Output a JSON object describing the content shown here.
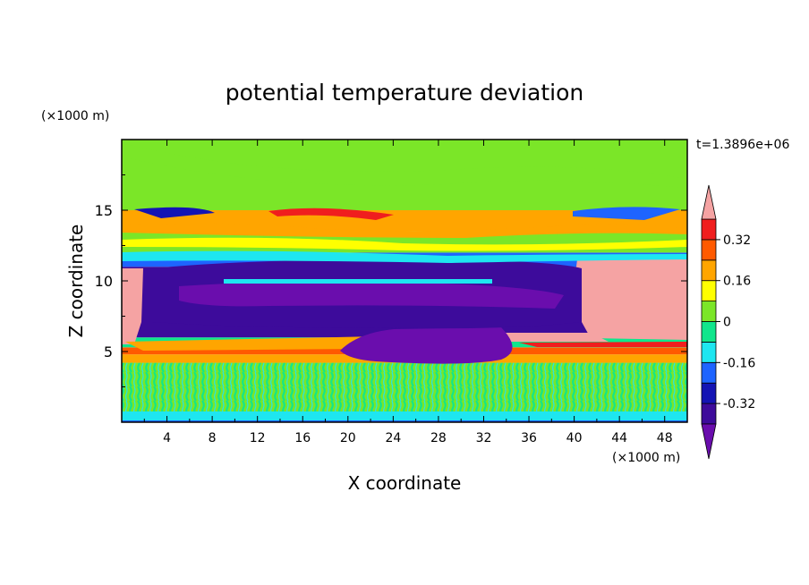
{
  "chart_data": {
    "type": "heatmap",
    "title": "potential temperature deviation",
    "xlabel": "X coordinate",
    "ylabel": "Z coordinate",
    "x_unit": "(×1000 m)",
    "y_unit": "(×1000 m)",
    "time_label": "t=1.3896e+06",
    "xlim": [
      0,
      50
    ],
    "ylim": [
      0,
      20
    ],
    "x_ticks": [
      4,
      8,
      12,
      16,
      20,
      24,
      28,
      32,
      36,
      40,
      44,
      48
    ],
    "y_ticks": [
      5,
      10,
      15
    ],
    "colorbar": {
      "levels": [
        -0.4,
        -0.32,
        -0.24,
        -0.16,
        -0.08,
        0,
        0.08,
        0.16,
        0.24,
        0.32,
        0.4
      ],
      "labels": [
        "-0.32",
        "-0.16",
        "0",
        "0.16",
        "0.32"
      ],
      "label_values": [
        -0.32,
        -0.16,
        0,
        0.16,
        0.32
      ],
      "colors": [
        "#6a0dad",
        "#3d0b9b",
        "#1414b4",
        "#1e64ff",
        "#1ee6f0",
        "#10e68c",
        "#7be628",
        "#ffff00",
        "#ffa500",
        "#ff5a00",
        "#f01e1e",
        "#f5a3a3"
      ],
      "under_color": "#6a0dad",
      "over_color": "#f5a3a3"
    },
    "regions": [
      {
        "z": [
          0,
          0.4
        ],
        "value": -0.2
      },
      {
        "z": [
          0.4,
          4.2
        ],
        "value": 0.05
      },
      {
        "z": [
          4.2,
          4.8
        ],
        "value": 0.18
      },
      {
        "z": [
          4.8,
          5.3
        ],
        "value": 0.3
      },
      {
        "z": [
          5.3,
          6.0
        ],
        "value": -0.05
      },
      {
        "z": [
          6.0,
          11.0
        ],
        "value": -0.38
      },
      {
        "z": [
          11.0,
          12.0
        ],
        "value": -0.18
      },
      {
        "z": [
          12.0,
          13.5
        ],
        "value": 0.05
      },
      {
        "z": [
          13.5,
          15.0
        ],
        "value": 0.2
      },
      {
        "z": [
          15.0,
          20.0
        ],
        "value": 0.04
      }
    ]
  }
}
